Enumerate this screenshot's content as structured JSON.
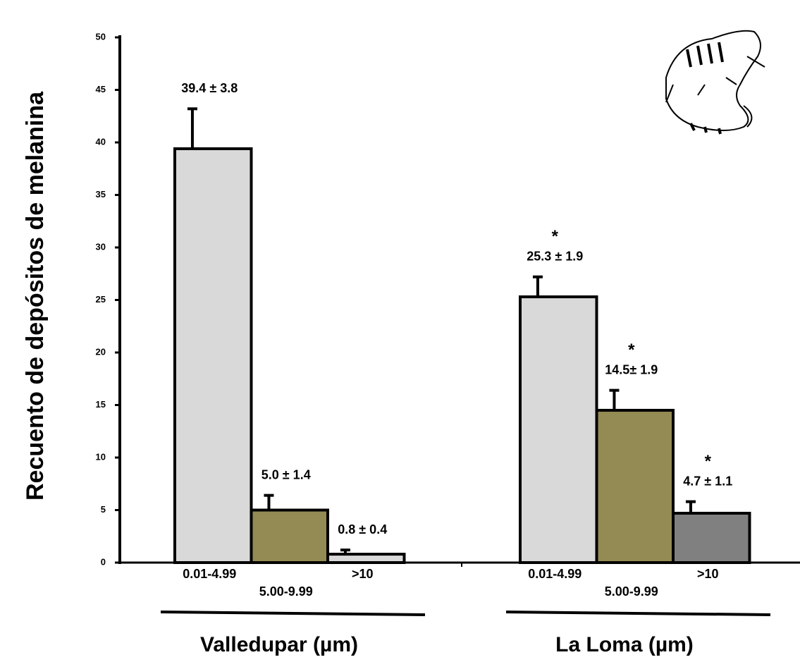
{
  "chart_data": {
    "type": "grouped-bar",
    "ylabel": "Recuento de depósitos de melanina",
    "ylim": [
      0,
      50
    ],
    "yticks": [
      0,
      5,
      10,
      15,
      20,
      25,
      30,
      35,
      40,
      45,
      50
    ],
    "groups": [
      {
        "name": "Valledupar (µm)",
        "categories": [
          "0.01-4.99",
          "5.00-9.99",
          ">10"
        ],
        "values": [
          39.4,
          5.0,
          0.8
        ],
        "errors": [
          3.8,
          1.4,
          0.4
        ],
        "value_labels": [
          "39.4 ± 3.8",
          "5.0 ± 1.4",
          "0.8 ± 0.4"
        ],
        "colors": [
          "#d9d9d9",
          "#948a54",
          "#d9d9d9"
        ]
      },
      {
        "name": "La Loma (µm)",
        "categories": [
          "0.01-4.99",
          "5.00-9.99",
          ">10"
        ],
        "values": [
          25.3,
          14.5,
          4.7
        ],
        "errors": [
          1.9,
          1.9,
          1.1
        ],
        "value_labels": [
          "25.3 ± 1.9",
          "14.5± 1.9",
          "4.7 ± 1.1"
        ],
        "significance": [
          "*",
          "*",
          "*"
        ],
        "colors": [
          "#d9d9d9",
          "#948a54",
          "#808080"
        ]
      }
    ]
  }
}
